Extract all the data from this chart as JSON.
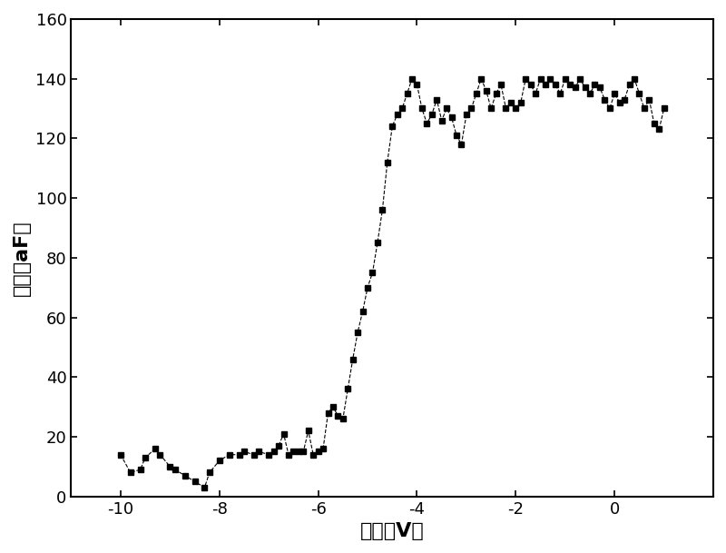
{
  "x": [
    -10.0,
    -9.8,
    -9.6,
    -9.5,
    -9.3,
    -9.2,
    -9.0,
    -8.9,
    -8.7,
    -8.5,
    -8.3,
    -8.2,
    -8.0,
    -7.8,
    -7.6,
    -7.5,
    -7.3,
    -7.2,
    -7.0,
    -6.9,
    -6.8,
    -6.7,
    -6.6,
    -6.5,
    -6.4,
    -6.3,
    -6.2,
    -6.1,
    -6.0,
    -5.9,
    -5.8,
    -5.7,
    -5.6,
    -5.5,
    -5.4,
    -5.3,
    -5.2,
    -5.1,
    -5.0,
    -4.9,
    -4.8,
    -4.7,
    -4.6,
    -4.5,
    -4.4,
    -4.3,
    -4.2,
    -4.1,
    -4.0,
    -3.9,
    -3.8,
    -3.7,
    -3.6,
    -3.5,
    -3.4,
    -3.3,
    -3.2,
    -3.1,
    -3.0,
    -2.9,
    -2.8,
    -2.7,
    -2.6,
    -2.5,
    -2.4,
    -2.3,
    -2.2,
    -2.1,
    -2.0,
    -1.9,
    -1.8,
    -1.7,
    -1.6,
    -1.5,
    -1.4,
    -1.3,
    -1.2,
    -1.1,
    -1.0,
    -0.9,
    -0.8,
    -0.7,
    -0.6,
    -0.5,
    -0.4,
    -0.3,
    -0.2,
    -0.1,
    0.0,
    0.1,
    0.2,
    0.3,
    0.4,
    0.5,
    0.6,
    0.7,
    0.8,
    0.9,
    1.0
  ],
  "y": [
    14.0,
    8.0,
    9.0,
    13.0,
    16.0,
    14.0,
    10.0,
    9.0,
    7.0,
    5.0,
    3.0,
    8.0,
    12.0,
    14.0,
    14.0,
    15.0,
    14.0,
    15.0,
    14.0,
    15.0,
    17.0,
    21.0,
    14.0,
    15.0,
    15.0,
    15.0,
    22.0,
    14.0,
    15.0,
    16.0,
    28.0,
    30.0,
    27.0,
    26.0,
    36.0,
    46.0,
    55.0,
    62.0,
    70.0,
    75.0,
    85.0,
    96.0,
    112.0,
    124.0,
    128.0,
    130.0,
    135.0,
    140.0,
    138.0,
    130.0,
    125.0,
    128.0,
    133.0,
    126.0,
    130.0,
    127.0,
    121.0,
    118.0,
    128.0,
    130.0,
    135.0,
    140.0,
    136.0,
    130.0,
    135.0,
    138.0,
    130.0,
    132.0,
    130.0,
    132.0,
    140.0,
    138.0,
    135.0,
    140.0,
    138.0,
    140.0,
    138.0,
    135.0,
    140.0,
    138.0,
    137.0,
    140.0,
    137.0,
    135.0,
    138.0,
    137.0,
    133.0,
    130.0,
    135.0,
    132.0,
    133.0,
    138.0,
    140.0,
    135.0,
    130.0,
    133.0,
    125.0,
    123.0,
    130.0
  ],
  "xlim": [
    -11,
    2
  ],
  "ylim": [
    0,
    160
  ],
  "xticks": [
    -10,
    -8,
    -6,
    -4,
    -2,
    0
  ],
  "yticks": [
    0,
    20,
    40,
    60,
    80,
    100,
    120,
    140,
    160
  ],
  "xlabel": "电压（V）",
  "ylabel": "电容（aF）",
  "line_color": "#000000",
  "marker": "s",
  "markersize": 5,
  "linestyle": "--",
  "linewidth": 0.8,
  "background_color": "#ffffff",
  "figure_facecolor": "#ffffff",
  "tick_labelsize": 13,
  "xlabel_fontsize": 16,
  "ylabel_fontsize": 16
}
